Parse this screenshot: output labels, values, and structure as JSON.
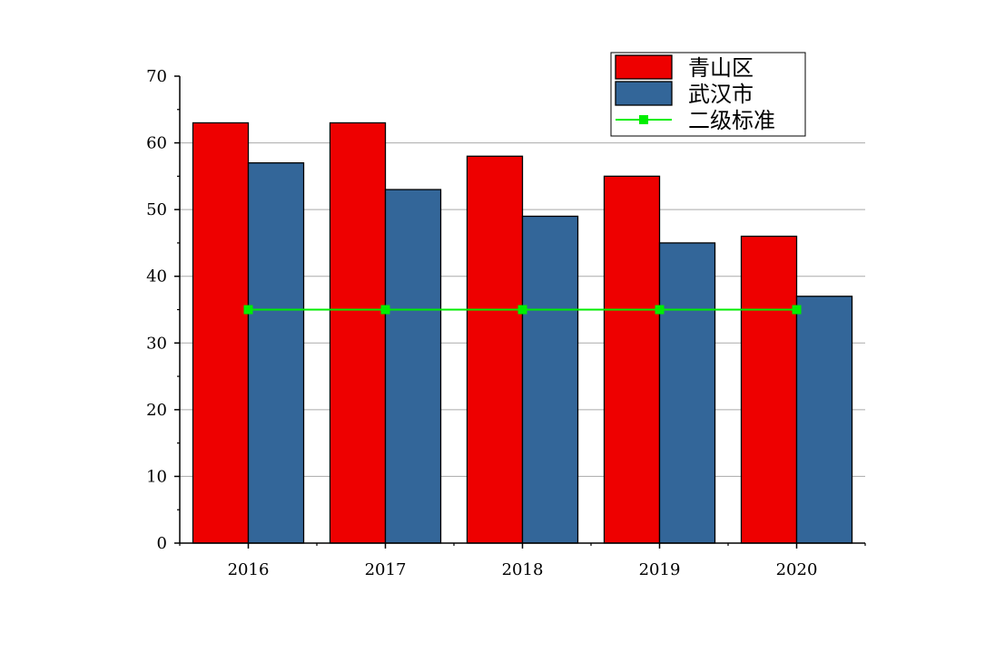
{
  "chart_data": {
    "type": "bar",
    "title": "",
    "xlabel": "",
    "ylabel": "",
    "categories": [
      "2016",
      "2017",
      "2018",
      "2019",
      "2020"
    ],
    "series": [
      {
        "name": "青山区",
        "type": "bar",
        "color": "#ee0000",
        "values": [
          63,
          63,
          58,
          55,
          46
        ]
      },
      {
        "name": "武汉市",
        "type": "bar",
        "color": "#336699",
        "values": [
          57,
          53,
          49,
          45,
          37
        ]
      },
      {
        "name": "二级标准",
        "type": "line",
        "color": "#00ee00",
        "values": [
          35,
          35,
          35,
          35,
          35
        ]
      }
    ],
    "ylim": [
      0,
      70
    ],
    "yticks": [
      0,
      10,
      20,
      30,
      40,
      50,
      60,
      70
    ],
    "grid": "horizontal",
    "legend_position": "top-right"
  }
}
